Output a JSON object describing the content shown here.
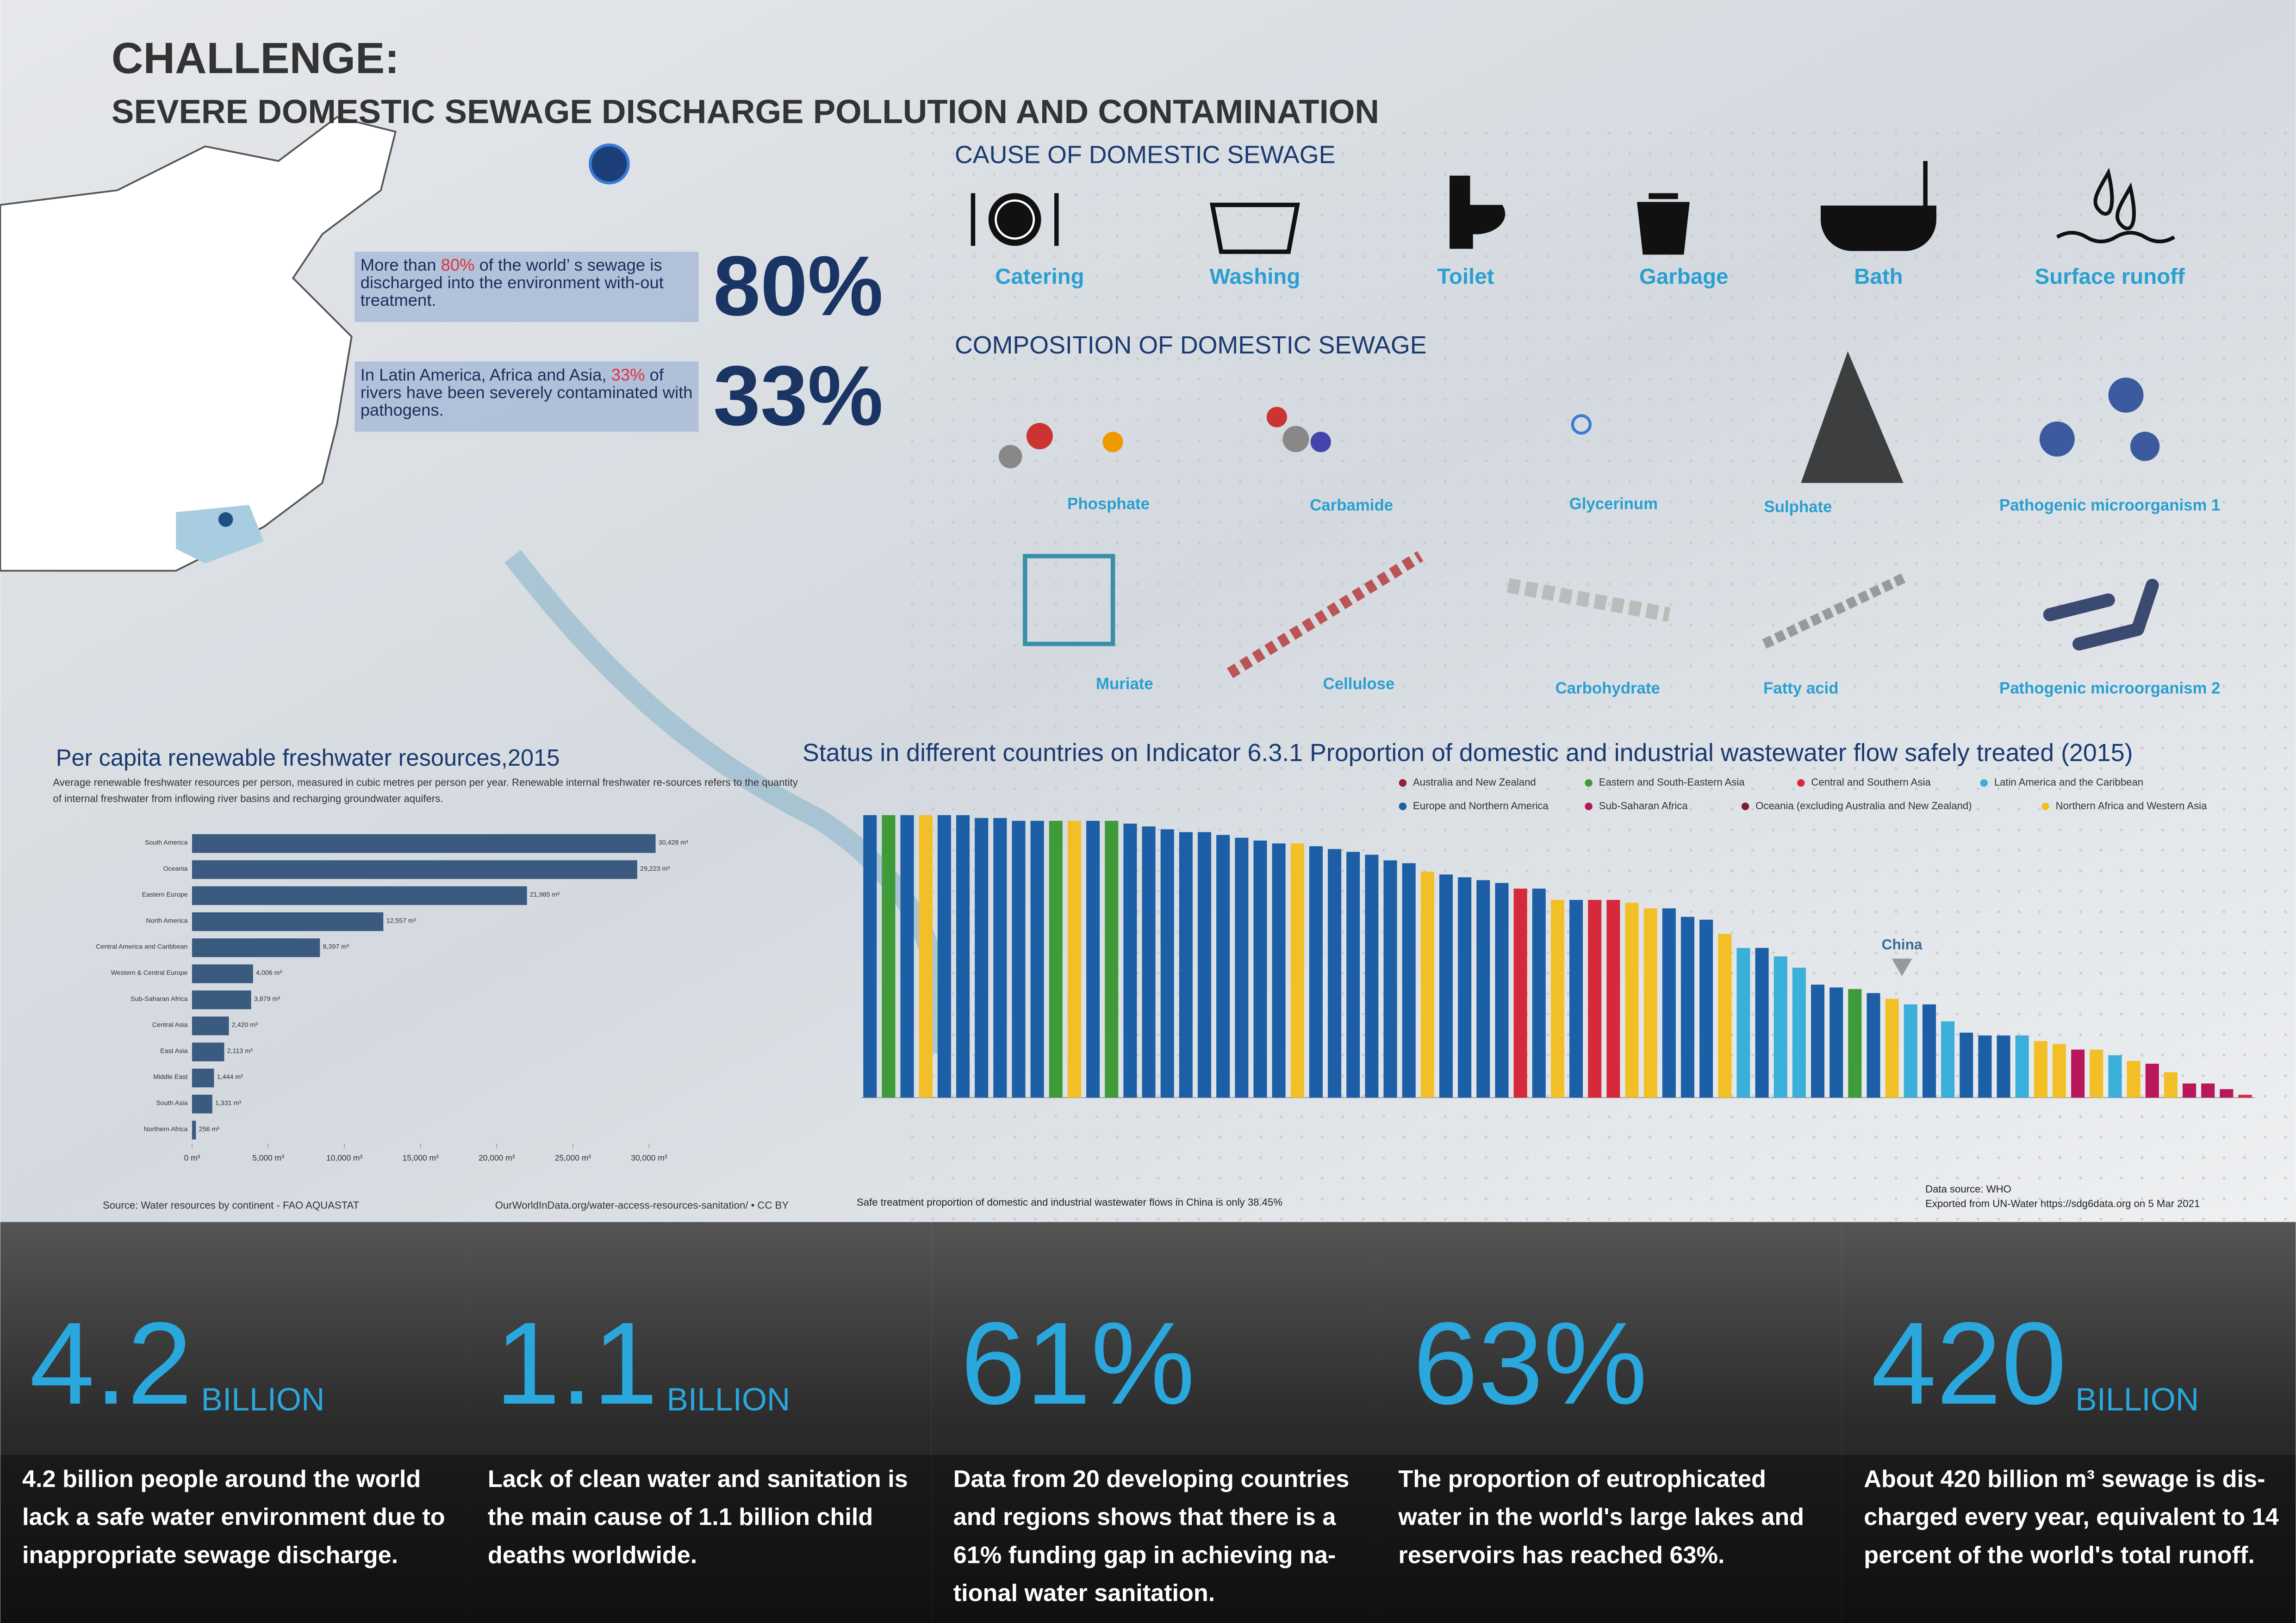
{
  "header": {
    "title": "CHALLENGE:",
    "subtitle": "SEVERE DOMESTIC SEWAGE DISCHARGE POLLUTION AND CONTAMINATION"
  },
  "stats": [
    {
      "big": "80%",
      "before": "More than ",
      "highlight": "80%",
      "after": " of the world’ s sewage is discharged into the environment with-out treatment."
    },
    {
      "big": "33%",
      "before": "In Latin America, Africa and Asia, ",
      "highlight": "33%",
      "after": " of rivers have been severely contaminated with pathogens."
    }
  ],
  "causes": {
    "title": "CAUSE OF DOMESTIC SEWAGE",
    "items": [
      "Catering",
      "Washing",
      "Toilet",
      "Garbage",
      "Bath",
      "Surface runoff"
    ]
  },
  "composition": {
    "title": "COMPOSITION OF DOMESTIC SEWAGE",
    "items": [
      "Phosphate",
      "Carbamide",
      "Glycerinum",
      "Sulphate",
      "Pathogenic microorganism 1",
      "Muriate",
      "Cellulose",
      "Carbohydrate",
      "Fatty acid",
      "Pathogenic microorganism 2"
    ]
  },
  "chart_data": [
    {
      "type": "hbar",
      "title": "Per capita renewable freshwater resources,2015",
      "subtitle": "Average renewable freshwater resources per person, measured in cubic metres per person per year. Renewable internal freshwater re-sources refers to the quantity of internal freshwater from inflowing river basins and recharging groundwater aquifers.",
      "categories": [
        "South America",
        "Oceania",
        "Eastern Europe",
        "North America",
        "Central America and Caribbean",
        "Western & Central Europe",
        "Sub-Saharan Africa",
        "Central Asia",
        "East Asia",
        "Middle East",
        "South Asia",
        "Northern Africa"
      ],
      "values": [
        30428,
        29223,
        21985,
        12557,
        8397,
        4006,
        3879,
        2420,
        2113,
        1444,
        1331,
        256
      ],
      "value_labels": [
        "30,428 m³",
        "29,223 m³",
        "21,985 m³",
        "12,557 m³",
        "8,397 m³",
        "4,006 m³",
        "3,879 m³",
        "2,420 m³",
        "2,113 m³",
        "1,444 m³",
        "1,331 m³",
        "256 m³"
      ],
      "color": "#3b5a80",
      "xlim": [
        0,
        32000
      ],
      "xticks": [
        {
          "value": 0,
          "label": "0 m³"
        },
        {
          "value": 5000,
          "label": "5,000 m³"
        },
        {
          "value": 10000,
          "label": "10,000 m³"
        },
        {
          "value": 15000,
          "label": "15,000 m³"
        },
        {
          "value": 20000,
          "label": "20,000 m³"
        },
        {
          "value": 25000,
          "label": "25,000 m³"
        },
        {
          "value": 30000,
          "label": "30,000 m³"
        }
      ],
      "source": "Source: Water resources by continent - FAO AQUASTAT",
      "link": "OurWorldInData.org/water-access-resources-sanitation/ • CC BY"
    },
    {
      "type": "bar",
      "title": "Status in different countries on Indicator 6.3.1 Proportion of domestic and industrial wastewater flow safely treated (2015)",
      "legend": [
        {
          "name": "Australia and New Zealand",
          "color": "#9b1b30"
        },
        {
          "name": "Eastern and South-Eastern Asia",
          "color": "#3f9b3a"
        },
        {
          "name": "Central and Southern Asia",
          "color": "#d62a3c"
        },
        {
          "name": "Latin America and the Caribbean",
          "color": "#3aafd9"
        },
        {
          "name": "Europe and Northern America",
          "color": "#1d5fa6"
        },
        {
          "name": "Sub-Saharan Africa",
          "color": "#b8175a"
        },
        {
          "name": "Oceania (excluding Australia and New Zealand)",
          "color": "#7d1d2e"
        },
        {
          "name": "Northern Africa and Western Asia",
          "color": "#f2c026"
        }
      ],
      "values": [
        100,
        100,
        100,
        100,
        100,
        100,
        99,
        99,
        98,
        98,
        98,
        98,
        98,
        98,
        97,
        96,
        95,
        94,
        94,
        93,
        92,
        91,
        90,
        90,
        89,
        88,
        87,
        86,
        84,
        83,
        80,
        79,
        78,
        77,
        76,
        74,
        74,
        70,
        70,
        70,
        70,
        69,
        67,
        67,
        64,
        63,
        58,
        53,
        53,
        50,
        46,
        40,
        39,
        38.45,
        37,
        35,
        33,
        33,
        27,
        23,
        22,
        22,
        22,
        20,
        19,
        17,
        17,
        15,
        13,
        12,
        9,
        5,
        5,
        3,
        1
      ],
      "colors": [
        "#1d5fa6",
        "#3f9b3a",
        "#1d5fa6",
        "#f2c026",
        "#1d5fa6",
        "#1d5fa6",
        "#1d5fa6",
        "#1d5fa6",
        "#1d5fa6",
        "#1d5fa6",
        "#3f9b3a",
        "#f2c026",
        "#1d5fa6",
        "#3f9b3a",
        "#1d5fa6",
        "#1d5fa6",
        "#1d5fa6",
        "#1d5fa6",
        "#1d5fa6",
        "#1d5fa6",
        "#1d5fa6",
        "#1d5fa6",
        "#1d5fa6",
        "#f2c026",
        "#1d5fa6",
        "#1d5fa6",
        "#1d5fa6",
        "#1d5fa6",
        "#1d5fa6",
        "#1d5fa6",
        "#f2c026",
        "#1d5fa6",
        "#1d5fa6",
        "#1d5fa6",
        "#1d5fa6",
        "#d62a3c",
        "#1d5fa6",
        "#f2c026",
        "#1d5fa6",
        "#d62a3c",
        "#d62a3c",
        "#f2c026",
        "#f2c026",
        "#1d5fa6",
        "#1d5fa6",
        "#1d5fa6",
        "#f2c026",
        "#3aafd9",
        "#1d5fa6",
        "#3aafd9",
        "#3aafd9",
        "#1d5fa6",
        "#1d5fa6",
        "#3f9b3a",
        "#1d5fa6",
        "#f2c026",
        "#3aafd9",
        "#1d5fa6",
        "#3aafd9",
        "#1d5fa6",
        "#1d5fa6",
        "#1d5fa6",
        "#3aafd9",
        "#f2c026",
        "#f2c026",
        "#b8175a",
        "#f2c026",
        "#3aafd9",
        "#f2c026",
        "#b8175a",
        "#f2c026",
        "#b8175a",
        "#b8175a",
        "#b8175a",
        "#d62a3c"
      ],
      "ylim": [
        0,
        100
      ],
      "annotation": "China",
      "note": "Safe treatment proportion of domestic and industrial wastewater flows in China is only 38.45%",
      "source": "Data source: WHO",
      "export": "Exported from UN-Water https://sdg6data.org on 5 Mar 2021"
    }
  ],
  "facts": [
    {
      "big": "4.2",
      "unit": "BILLION",
      "text": "4.2 billion people around the world lack a safe water environment due to inappropriate sewage discharge."
    },
    {
      "big": "1.1",
      "unit": "BILLION",
      "text": "Lack of clean water and sanitation is the main cause of 1.1 billion child deaths worldwide."
    },
    {
      "big": "61%",
      "text": "Data from 20 developing countries and regions shows that there is a 61% funding gap in achieving na-tional water sanitation."
    },
    {
      "big": "63%",
      "text": "The proportion of eutrophicated water in the world's large lakes and reservoirs has reached 63%."
    },
    {
      "big": "420",
      "unit": "BILLION",
      "text": "About 420 billion m³ sewage is dis-charged every year, equivalent to 14 percent of the world's total runoff."
    }
  ]
}
